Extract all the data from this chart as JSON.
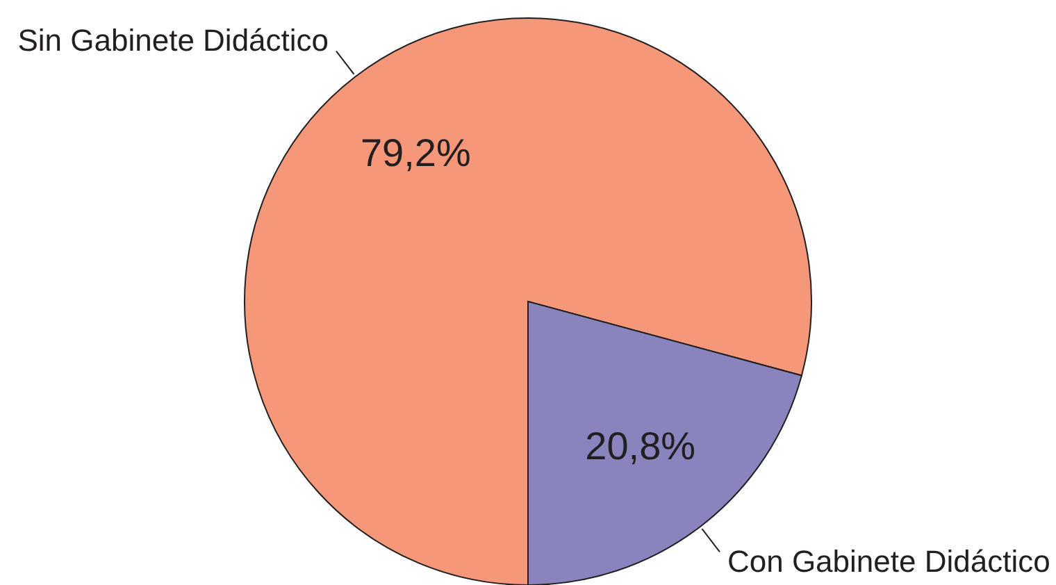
{
  "chart_data": {
    "type": "pie",
    "categories": [
      "Sin Gabinete Didáctico",
      "Con Gabinete Didáctico"
    ],
    "values": [
      79.2,
      20.8
    ],
    "colors": [
      "#f59879",
      "#8983be"
    ],
    "value_labels": [
      "79,2%",
      "20,8%"
    ]
  }
}
